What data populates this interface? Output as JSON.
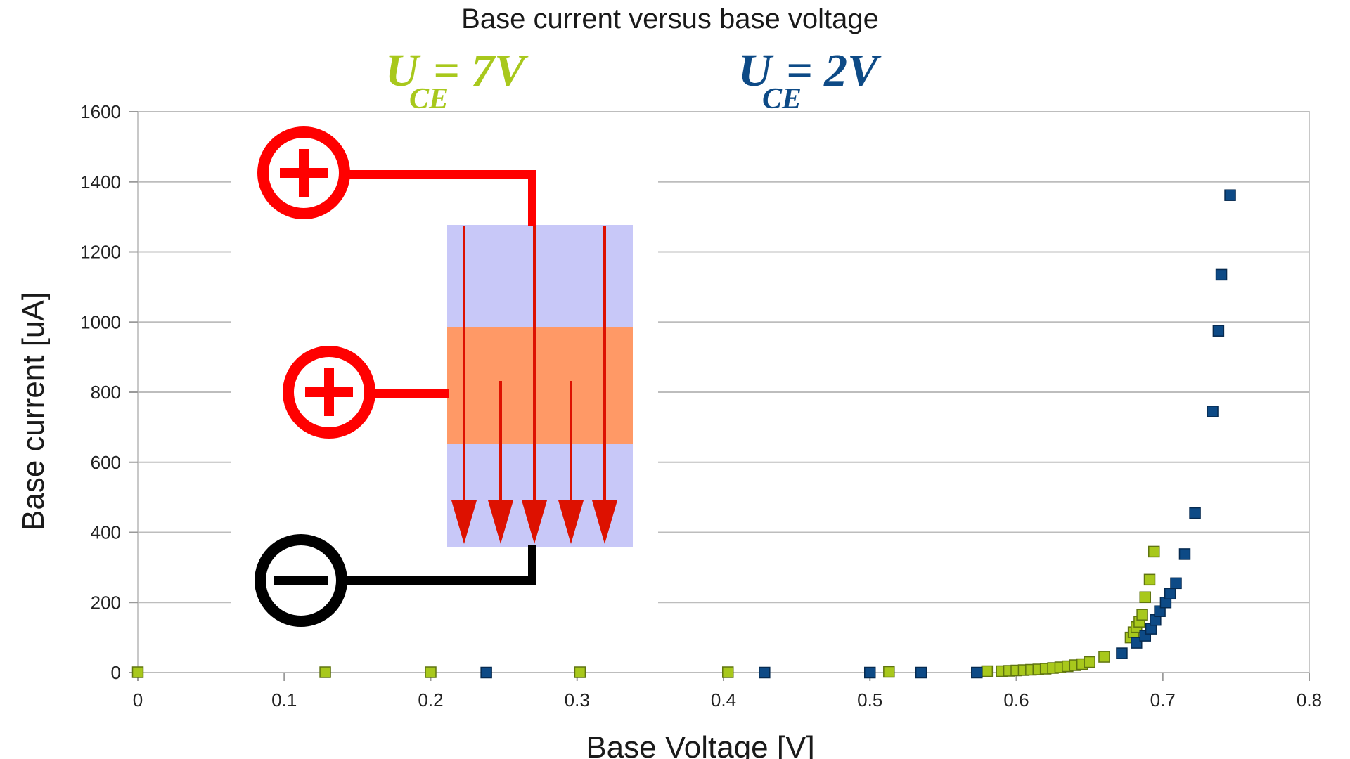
{
  "chart_data": {
    "type": "scatter",
    "title": "Base current versus base voltage",
    "xlabel": "Base Voltage [V]",
    "ylabel": "Base current [uA]",
    "xlim": [
      0,
      0.8
    ],
    "ylim": [
      0,
      1600
    ],
    "x_ticks": [
      "0",
      "0.1",
      "0.2",
      "0.3",
      "0.4",
      "0.5",
      "0.6",
      "0.7",
      "0.8"
    ],
    "y_ticks": [
      "0",
      "200",
      "400",
      "600",
      "800",
      "1000",
      "1200",
      "1400",
      "1600"
    ],
    "grid": "horizontal",
    "legend_position": "top",
    "series": [
      {
        "name": "U_CE = 7V",
        "label_main": "U",
        "label_sub": "CE",
        "label_value": "= 7V",
        "color": "#a8c81c",
        "x": [
          0.0,
          0.128,
          0.2,
          0.302,
          0.403,
          0.513,
          0.58,
          0.59,
          0.595,
          0.6,
          0.605,
          0.61,
          0.615,
          0.62,
          0.625,
          0.63,
          0.635,
          0.64,
          0.645,
          0.65,
          0.66,
          0.678,
          0.68,
          0.682,
          0.684,
          0.686,
          0.688,
          0.691,
          0.694
        ],
        "y": [
          1,
          1,
          1,
          1,
          1,
          2,
          4,
          4,
          5,
          6,
          7,
          8,
          9,
          11,
          13,
          15,
          18,
          21,
          24,
          30,
          45,
          100,
          115,
          130,
          145,
          165,
          215,
          265,
          345
        ]
      },
      {
        "name": "U_CE = 2V",
        "label_main": "U",
        "label_sub": "CE",
        "label_value": "= 2V",
        "color": "#0d4a86",
        "x": [
          0.238,
          0.428,
          0.5,
          0.535,
          0.573,
          0.672,
          0.682,
          0.688,
          0.692,
          0.695,
          0.698,
          0.702,
          0.705,
          0.709,
          0.715,
          0.722,
          0.734,
          0.738,
          0.74,
          0.746
        ],
        "y": [
          0,
          0,
          0,
          0,
          0,
          55,
          85,
          105,
          125,
          150,
          175,
          200,
          225,
          255,
          338,
          455,
          745,
          975,
          1135,
          1362
        ]
      }
    ],
    "annotation": {
      "type": "transistor-schematic",
      "terminals": [
        "plus-collector",
        "plus-base",
        "minus-emitter"
      ],
      "colors": {
        "terminal_positive": "#ff0000",
        "terminal_negative": "#000000",
        "n_region": "#c8c8f8",
        "p_region": "#ff9966",
        "current_arrow": "#dd1100"
      }
    }
  }
}
